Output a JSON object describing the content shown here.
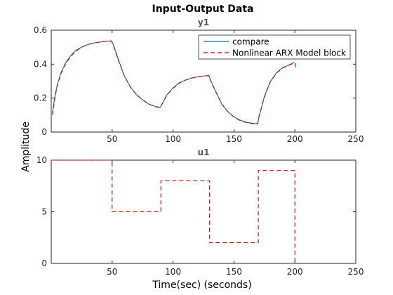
{
  "chart_data": {
    "title": "Input-Output Data",
    "xlabel": "Time(sec) (seconds)",
    "ylabel": "Amplitude",
    "xlim": [
      0,
      250
    ],
    "xticks": [
      50,
      100,
      150,
      200,
      250
    ],
    "colors": {
      "compare": "#0072BD",
      "model": "#D00000",
      "axis": "#262626",
      "grid": "#e6e6e6"
    },
    "subplots": [
      {
        "type": "line",
        "title": "y1",
        "ylim": [
          0,
          0.6
        ],
        "yticks": [
          0,
          0.2,
          0.4,
          0.6
        ],
        "ytick_labels": [
          "0",
          "0.2",
          "0.4",
          "0.6"
        ],
        "legend": {
          "placement": "top-right",
          "entries": [
            "compare",
            "Nonlinear ARX Model block"
          ]
        },
        "series": [
          {
            "name": "compare",
            "style": "solid",
            "x": [
              1,
              3,
              5,
              8,
              12,
              16,
              20,
              25,
              30,
              35,
              40,
              45,
              49.5,
              50.5,
              55,
              60,
              65,
              70,
              75,
              80,
              85,
              89.5,
              90.5,
              95,
              100,
              105,
              110,
              115,
              120,
              125,
              129.5,
              130.5,
              135,
              140,
              145,
              150,
              155,
              160,
              165,
              169.5,
              170.5,
              175,
              180,
              185,
              190,
              195,
              199.5
            ],
            "y": [
              0.11,
              0.21,
              0.28,
              0.35,
              0.41,
              0.45,
              0.48,
              0.5,
              0.515,
              0.525,
              0.53,
              0.535,
              0.537,
              0.525,
              0.43,
              0.33,
              0.265,
              0.22,
              0.19,
              0.165,
              0.152,
              0.145,
              0.16,
              0.22,
              0.26,
              0.29,
              0.305,
              0.318,
              0.325,
              0.33,
              0.333,
              0.31,
              0.24,
              0.165,
              0.12,
              0.09,
              0.07,
              0.058,
              0.052,
              0.05,
              0.09,
              0.21,
              0.3,
              0.35,
              0.38,
              0.395,
              0.41
            ]
          },
          {
            "name": "Nonlinear ARX Model block",
            "style": "dashed",
            "x": [
              1,
              3,
              5,
              8,
              12,
              16,
              20,
              25,
              30,
              35,
              40,
              45,
              49.5,
              50.5,
              55,
              60,
              65,
              70,
              75,
              80,
              85,
              89.5,
              90.5,
              95,
              100,
              105,
              110,
              115,
              120,
              125,
              129.5,
              130.5,
              135,
              140,
              145,
              150,
              155,
              160,
              165,
              169.5,
              170.5,
              175,
              180,
              185,
              190,
              195,
              199.5,
              200.5,
              200.5
            ],
            "y": [
              0.1,
              0.2,
              0.275,
              0.345,
              0.405,
              0.445,
              0.475,
              0.5,
              0.515,
              0.525,
              0.53,
              0.535,
              0.535,
              0.52,
              0.425,
              0.33,
              0.265,
              0.22,
              0.19,
              0.165,
              0.15,
              0.143,
              0.158,
              0.218,
              0.258,
              0.288,
              0.305,
              0.318,
              0.325,
              0.33,
              0.332,
              0.308,
              0.238,
              0.165,
              0.12,
              0.088,
              0.068,
              0.056,
              0.05,
              0.048,
              0.088,
              0.208,
              0.298,
              0.348,
              0.378,
              0.393,
              0.408,
              0.4,
              0.375
            ]
          }
        ]
      },
      {
        "type": "line",
        "title": "u1",
        "ylim": [
          0,
          10
        ],
        "yticks": [
          0,
          5,
          10
        ],
        "ytick_labels": [
          "0",
          "5",
          "10"
        ],
        "series": [
          {
            "name": "Nonlinear ARX Model block",
            "style": "dashed",
            "x": [
              0,
              50,
              50,
              90,
              90,
              130,
              130,
              170,
              170,
              200,
              200
            ],
            "y": [
              10,
              10,
              5,
              5,
              8,
              8,
              2,
              2,
              9,
              9,
              0
            ]
          }
        ]
      }
    ]
  }
}
